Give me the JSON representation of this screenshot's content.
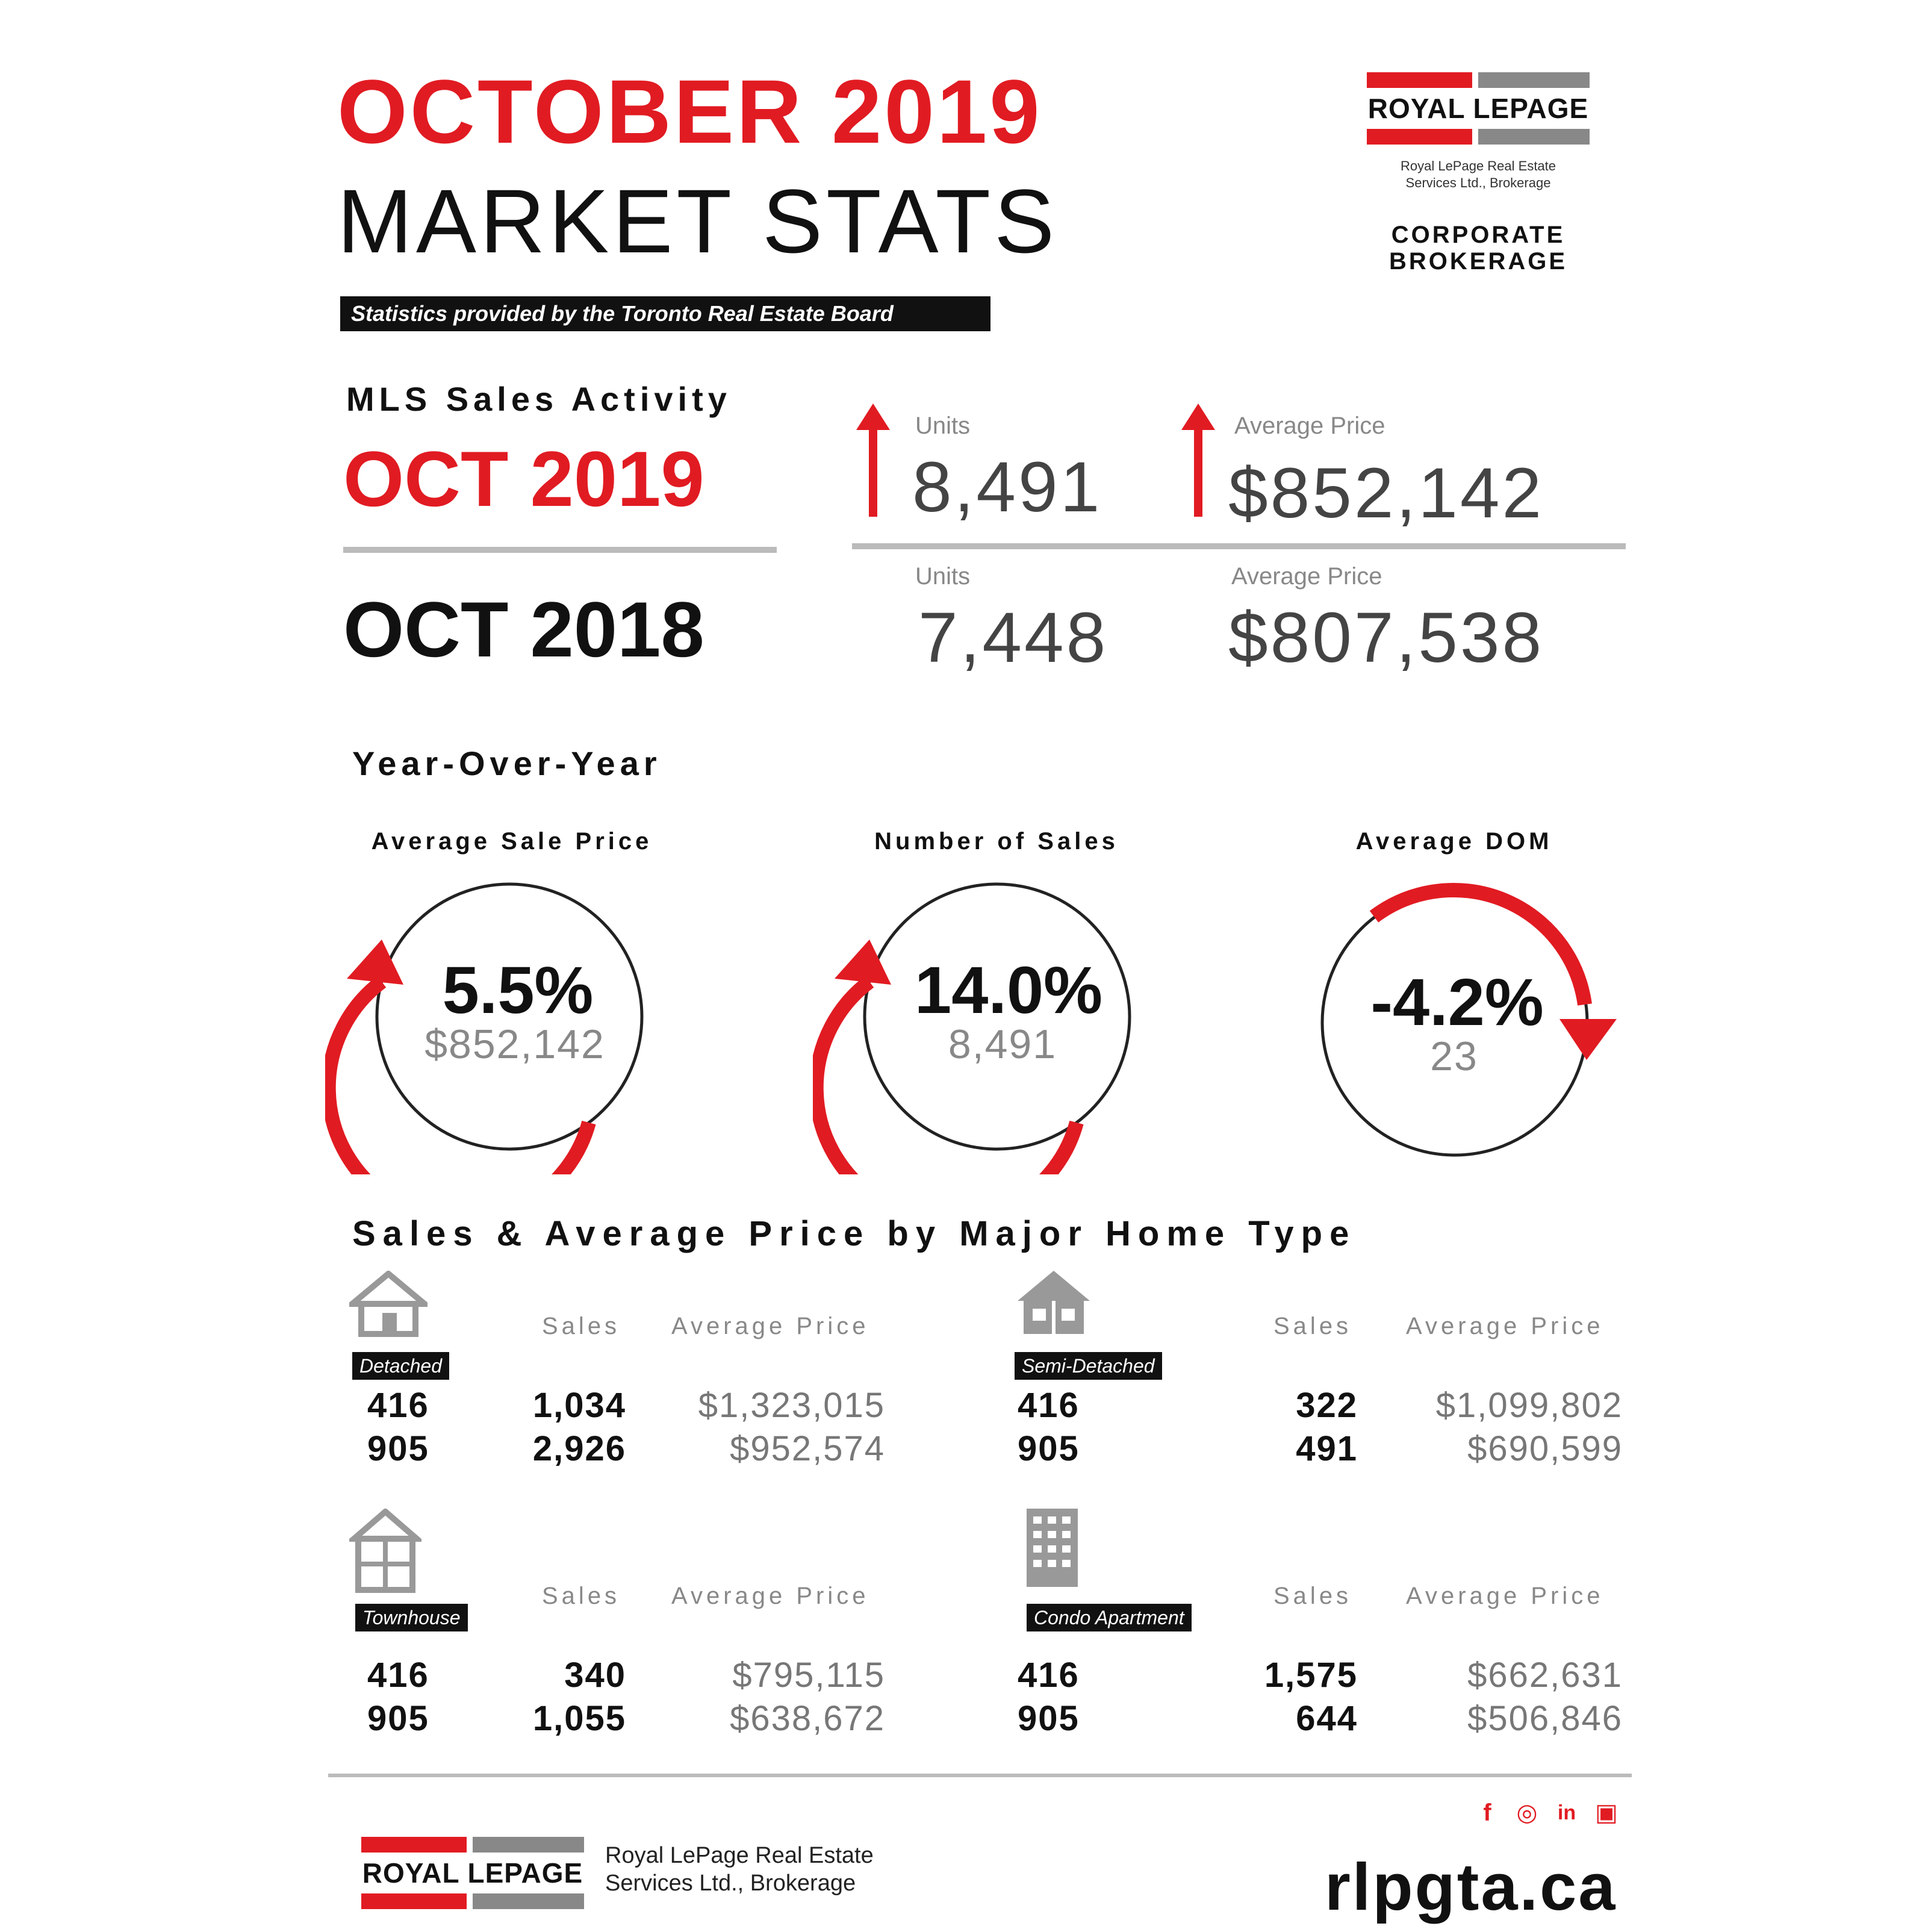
{
  "header": {
    "title_line1": "OCTOBER 2019",
    "title_line2": "MARKET STATS",
    "banner": "Statistics provided by the Toronto Real Estate Board"
  },
  "logo": {
    "wordmark": "ROYAL LEPAGE",
    "sub_line1": "Royal LePage Real Estate",
    "sub_line2": "Services Ltd., Brokerage",
    "corporate_line1": "CORPORATE",
    "corporate_line2": "BROKERAGE"
  },
  "mls": {
    "label": "MLS Sales Activity",
    "current": {
      "period": "OCT 2019",
      "units_label": "Units",
      "units": "8,491",
      "price_label": "Average Price",
      "price": "$852,142"
    },
    "previous": {
      "period": "OCT 2018",
      "units_label": "Units",
      "units": "7,448",
      "price_label": "Average Price",
      "price": "$807,538"
    }
  },
  "yoy": {
    "label": "Year-Over-Year",
    "gauges": [
      {
        "title": "Average Sale Price",
        "pct": "5.5%",
        "value": "$852,142",
        "direction": "up"
      },
      {
        "title": "Number of Sales",
        "pct": "14.0%",
        "value": "8,491",
        "direction": "up"
      },
      {
        "title": "Average DOM",
        "pct": "-4.2%",
        "value": "23",
        "direction": "down"
      }
    ]
  },
  "home_types": {
    "label": "Sales & Average Price by Major Home Type",
    "col_sales": "Sales",
    "col_price": "Average Price",
    "items": [
      {
        "name": "Detached",
        "icon": "house-icon",
        "rows": [
          {
            "code": "416",
            "sales": "1,034",
            "price": "$1,323,015"
          },
          {
            "code": "905",
            "sales": "2,926",
            "price": "$952,574"
          }
        ]
      },
      {
        "name": "Semi-Detached",
        "icon": "semi-detached-icon",
        "rows": [
          {
            "code": "416",
            "sales": "322",
            "price": "$1,099,802"
          },
          {
            "code": "905",
            "sales": "491",
            "price": "$690,599"
          }
        ]
      },
      {
        "name": "Townhouse",
        "icon": "townhouse-icon",
        "rows": [
          {
            "code": "416",
            "sales": "340",
            "price": "$795,115"
          },
          {
            "code": "905",
            "sales": "1,055",
            "price": "$638,672"
          }
        ]
      },
      {
        "name": "Condo Apartment",
        "icon": "condo-building-icon",
        "rows": [
          {
            "code": "416",
            "sales": "1,575",
            "price": "$662,631"
          },
          {
            "code": "905",
            "sales": "644",
            "price": "$506,846"
          }
        ]
      }
    ]
  },
  "footer": {
    "wordmark": "ROYAL LEPAGE",
    "sub_line1": "Royal LePage Real Estate",
    "sub_line2": "Services Ltd., Brokerage",
    "url": "rlpgta.ca",
    "social": [
      "facebook-icon",
      "instagram-icon",
      "linkedin-icon",
      "youtube-icon"
    ]
  },
  "colors": {
    "accent": "#e11b22",
    "dark": "#111111",
    "grey": "#888888"
  }
}
